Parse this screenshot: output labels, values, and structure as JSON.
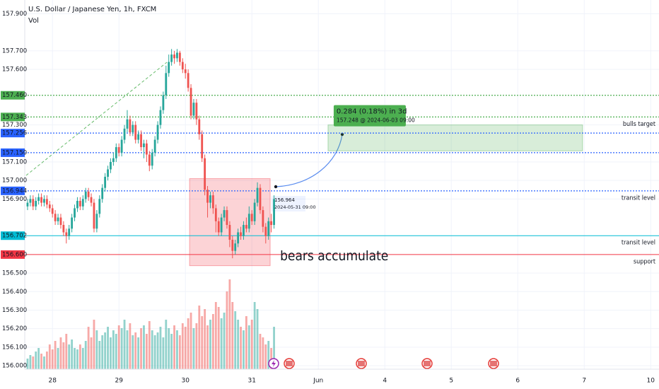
{
  "chart_data": {
    "type": "candlestick",
    "title": "U.S. Dollar / Japanese Yen, 1h, FXCM",
    "indicator": "Vol",
    "up_color": "#26a69a",
    "down_color": "#ef5350",
    "grid": true,
    "xlim": [
      -0.5,
      228
    ],
    "xticks": [
      {
        "value": 9,
        "label": "28"
      },
      {
        "value": 33,
        "label": "29"
      },
      {
        "value": 57,
        "label": "30"
      },
      {
        "value": 81,
        "label": "31"
      },
      {
        "value": 105,
        "label": "Jun"
      },
      {
        "value": 129,
        "label": "4"
      },
      {
        "value": 153,
        "label": "5"
      },
      {
        "value": 177,
        "label": "6"
      },
      {
        "value": 201,
        "label": "7"
      },
      {
        "value": 225,
        "label": "10"
      }
    ],
    "ylim": [
      155.981,
      157.944
    ],
    "yticks": [
      {
        "value": 157.9,
        "label": "157.900"
      },
      {
        "value": 157.7,
        "label": "157.700"
      },
      {
        "value": 157.6,
        "label": "157.600"
      },
      {
        "value": 157.3,
        "label": "157.300"
      },
      {
        "value": 157.1,
        "label": "157.100"
      },
      {
        "value": 157.0,
        "label": "157.000"
      },
      {
        "value": 156.9,
        "label": "156.900"
      },
      {
        "value": 156.5,
        "label": "156.500"
      },
      {
        "value": 156.4,
        "label": "156.400"
      },
      {
        "value": 156.3,
        "label": "156.300"
      },
      {
        "value": 156.2,
        "label": "156.200"
      },
      {
        "value": 156.1,
        "label": "156.100"
      },
      {
        "value": 156.0,
        "label": "156.000"
      }
    ],
    "open": [
      156.86,
      156.88,
      156.9,
      156.86,
      156.89,
      156.91,
      156.88,
      156.9,
      156.87,
      156.85,
      156.82,
      156.78,
      156.8,
      156.76,
      156.72,
      156.7,
      156.74,
      156.8,
      156.85,
      156.89,
      156.86,
      156.9,
      156.94,
      156.91,
      156.88,
      156.74,
      156.82,
      156.9,
      156.96,
      157.02,
      157.06,
      157.1,
      157.12,
      157.18,
      157.15,
      157.22,
      157.28,
      157.33,
      157.26,
      157.3,
      157.22,
      157.25,
      157.18,
      157.2,
      157.14,
      157.08,
      157.15,
      157.22,
      157.3,
      157.38,
      157.46,
      157.58,
      157.64,
      157.68,
      157.66,
      157.69,
      157.64,
      157.6,
      157.58,
      157.5,
      157.35,
      157.42,
      157.33,
      157.25,
      157.12,
      156.95,
      156.88,
      156.92,
      156.85,
      156.78,
      156.72,
      156.8,
      156.84,
      156.76,
      156.68,
      156.62,
      156.66,
      156.72,
      156.7,
      156.76,
      156.74,
      156.82,
      156.78,
      156.88,
      156.96,
      156.84,
      156.75,
      156.7,
      156.78,
      156.76
    ],
    "high": [
      156.9,
      156.92,
      156.92,
      156.91,
      156.93,
      156.93,
      156.92,
      156.92,
      156.89,
      156.87,
      156.84,
      156.82,
      156.82,
      156.78,
      156.74,
      156.76,
      156.82,
      156.87,
      156.91,
      156.91,
      156.92,
      156.96,
      156.96,
      156.93,
      156.9,
      156.84,
      156.92,
      156.98,
      157.04,
      157.08,
      157.12,
      157.15,
      157.2,
      157.2,
      157.24,
      157.3,
      157.38,
      157.35,
      157.32,
      157.32,
      157.27,
      157.27,
      157.22,
      157.22,
      157.16,
      157.17,
      157.24,
      157.32,
      157.4,
      157.48,
      157.62,
      157.68,
      157.71,
      157.7,
      157.71,
      157.7,
      157.66,
      157.63,
      157.6,
      157.52,
      157.44,
      157.44,
      157.35,
      157.27,
      157.14,
      156.97,
      156.94,
      156.94,
      156.87,
      156.8,
      156.82,
      156.86,
      156.86,
      156.78,
      156.7,
      156.68,
      156.74,
      156.75,
      156.78,
      156.8,
      156.86,
      156.84,
      156.9,
      156.99,
      156.98,
      156.86,
      156.77,
      156.8,
      156.82,
      156.92
    ],
    "low": [
      156.84,
      156.86,
      156.84,
      156.84,
      156.87,
      156.86,
      156.86,
      156.85,
      156.83,
      156.8,
      156.76,
      156.76,
      156.74,
      156.7,
      156.66,
      156.68,
      156.72,
      156.78,
      156.83,
      156.84,
      156.84,
      156.88,
      156.89,
      156.86,
      156.72,
      156.72,
      156.8,
      156.88,
      156.94,
      157.0,
      157.04,
      157.08,
      157.1,
      157.13,
      157.13,
      157.2,
      157.26,
      157.24,
      157.24,
      157.2,
      157.2,
      157.16,
      157.12,
      157.1,
      157.05,
      157.06,
      157.13,
      157.2,
      157.28,
      157.36,
      157.44,
      157.56,
      157.62,
      157.63,
      157.64,
      157.62,
      157.58,
      157.55,
      157.48,
      157.33,
      157.33,
      157.3,
      157.22,
      157.1,
      156.92,
      156.8,
      156.85,
      156.82,
      156.72,
      156.7,
      156.7,
      156.78,
      156.74,
      156.64,
      156.58,
      156.6,
      156.64,
      156.68,
      156.68,
      156.72,
      156.72,
      156.76,
      156.76,
      156.86,
      156.82,
      156.72,
      156.66,
      156.68,
      156.72,
      156.74
    ],
    "close": [
      156.88,
      156.9,
      156.86,
      156.89,
      156.91,
      156.88,
      156.9,
      156.87,
      156.85,
      156.82,
      156.78,
      156.8,
      156.76,
      156.72,
      156.7,
      156.74,
      156.8,
      156.85,
      156.89,
      156.86,
      156.9,
      156.94,
      156.91,
      156.88,
      156.74,
      156.82,
      156.9,
      156.96,
      157.02,
      157.06,
      157.1,
      157.12,
      157.18,
      157.15,
      157.22,
      157.28,
      157.33,
      157.26,
      157.3,
      157.22,
      157.25,
      157.18,
      157.2,
      157.14,
      157.08,
      157.15,
      157.22,
      157.3,
      157.38,
      157.46,
      157.58,
      157.64,
      157.68,
      157.66,
      157.69,
      157.64,
      157.6,
      157.58,
      157.5,
      157.35,
      157.42,
      157.33,
      157.25,
      157.12,
      156.95,
      156.88,
      156.92,
      156.85,
      156.78,
      156.72,
      156.8,
      156.84,
      156.76,
      156.68,
      156.62,
      156.66,
      156.72,
      156.7,
      156.76,
      156.74,
      156.82,
      156.78,
      156.88,
      156.96,
      156.84,
      156.75,
      156.7,
      156.78,
      156.76,
      156.9
    ],
    "vlim": [
      0,
      160
    ],
    "volume": [
      15,
      20,
      18,
      25,
      30,
      22,
      18,
      25,
      35,
      28,
      40,
      30,
      45,
      38,
      50,
      35,
      42,
      30,
      28,
      35,
      30,
      40,
      60,
      45,
      70,
      55,
      40,
      48,
      52,
      60,
      45,
      55,
      50,
      62,
      58,
      70,
      55,
      65,
      48,
      52,
      45,
      58,
      62,
      50,
      68,
      55,
      48,
      52,
      60,
      45,
      70,
      58,
      50,
      62,
      55,
      48,
      65,
      60,
      72,
      80,
      58,
      65,
      90,
      75,
      85,
      62,
      70,
      78,
      95,
      88,
      72,
      80,
      110,
      127,
      95,
      82,
      70,
      60,
      55,
      75,
      62,
      70,
      95,
      85,
      50,
      45,
      35,
      40,
      30,
      60
    ],
    "lines": [
      {
        "value": 157.46,
        "label": "157.460",
        "color": "#4caf50",
        "style": "dotted"
      },
      {
        "value": 157.343,
        "label": "157.343",
        "color": "#4caf50",
        "style": "dotted",
        "text": "bulls target"
      },
      {
        "value": 157.256,
        "label": "157.256",
        "color": "#2962ff",
        "style": "dotted"
      },
      {
        "value": 157.15,
        "label": "157.150",
        "color": "#2962ff",
        "style": "dotted"
      },
      {
        "value": 156.944,
        "label": "156.944",
        "color": "#2962ff",
        "style": "dotted",
        "text": "transit level"
      },
      {
        "value": 156.702,
        "label": "156.702",
        "color": "#00bcd4",
        "style": "solid",
        "text": "transit level"
      },
      {
        "value": 156.6,
        "label": "156.600",
        "color": "#f23645",
        "style": "solid",
        "text": "support"
      }
    ],
    "boxes": [
      {
        "x": [
          58.5,
          87.6
        ],
        "y": [
          156.54,
          157.01
        ],
        "color": "#f23645",
        "text": "bears accumulate"
      },
      {
        "x": [
          108.5,
          200.4
        ],
        "y": [
          157.16,
          157.3
        ],
        "color": "#4caf50",
        "text": "0.284 (0.18%) in 3d",
        "subtext": "157.248 @ 2024-06-03 09:00"
      }
    ],
    "start_label": {
      "text": "156.964",
      "subtext": "2024-05-31 09:00"
    }
  }
}
